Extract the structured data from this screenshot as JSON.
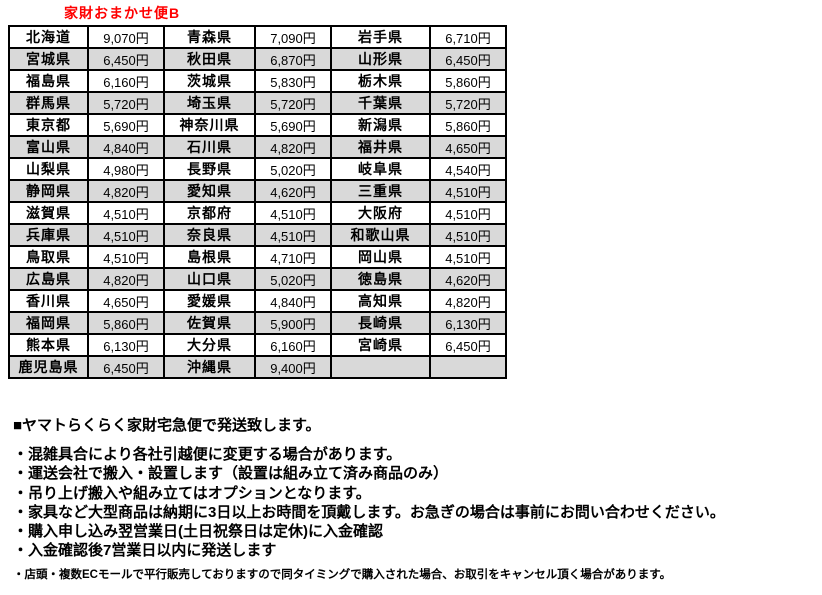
{
  "title": "家財おまかせ便B",
  "colors": {
    "title_red": "#ff0000",
    "row_alt_gray": "#d9d9d9",
    "border": "#000000"
  },
  "table": {
    "rows": [
      [
        [
          "北海道",
          "9,070円"
        ],
        [
          "青森県",
          "7,090円"
        ],
        [
          "岩手県",
          "6,710円"
        ]
      ],
      [
        [
          "宮城県",
          "6,450円"
        ],
        [
          "秋田県",
          "6,870円"
        ],
        [
          "山形県",
          "6,450円"
        ]
      ],
      [
        [
          "福島県",
          "6,160円"
        ],
        [
          "茨城県",
          "5,830円"
        ],
        [
          "栃木県",
          "5,860円"
        ]
      ],
      [
        [
          "群馬県",
          "5,720円"
        ],
        [
          "埼玉県",
          "5,720円"
        ],
        [
          "千葉県",
          "5,720円"
        ]
      ],
      [
        [
          "東京都",
          "5,690円"
        ],
        [
          "神奈川県",
          "5,690円"
        ],
        [
          "新潟県",
          "5,860円"
        ]
      ],
      [
        [
          "富山県",
          "4,840円"
        ],
        [
          "石川県",
          "4,820円"
        ],
        [
          "福井県",
          "4,650円"
        ]
      ],
      [
        [
          "山梨県",
          "4,980円"
        ],
        [
          "長野県",
          "5,020円"
        ],
        [
          "岐阜県",
          "4,540円"
        ]
      ],
      [
        [
          "静岡県",
          "4,820円"
        ],
        [
          "愛知県",
          "4,620円"
        ],
        [
          "三重県",
          "4,510円"
        ]
      ],
      [
        [
          "滋賀県",
          "4,510円"
        ],
        [
          "京都府",
          "4,510円"
        ],
        [
          "大阪府",
          "4,510円"
        ]
      ],
      [
        [
          "兵庫県",
          "4,510円"
        ],
        [
          "奈良県",
          "4,510円"
        ],
        [
          "和歌山県",
          "4,510円"
        ]
      ],
      [
        [
          "鳥取県",
          "4,510円"
        ],
        [
          "島根県",
          "4,710円"
        ],
        [
          "岡山県",
          "4,510円"
        ]
      ],
      [
        [
          "広島県",
          "4,820円"
        ],
        [
          "山口県",
          "5,020円"
        ],
        [
          "徳島県",
          "4,620円"
        ]
      ],
      [
        [
          "香川県",
          "4,650円"
        ],
        [
          "愛媛県",
          "4,840円"
        ],
        [
          "高知県",
          "4,820円"
        ]
      ],
      [
        [
          "福岡県",
          "5,860円"
        ],
        [
          "佐賀県",
          "5,900円"
        ],
        [
          "長崎県",
          "6,130円"
        ]
      ],
      [
        [
          "熊本県",
          "6,130円"
        ],
        [
          "大分県",
          "6,160円"
        ],
        [
          "宮崎県",
          "6,450円"
        ]
      ],
      [
        [
          "鹿児島県",
          "6,450円"
        ],
        [
          "沖縄県",
          "9,400円"
        ],
        [
          "",
          ""
        ]
      ]
    ]
  },
  "notes": {
    "heading": "■ヤマトらくらく家財宅急便で発送致します。",
    "bullets": [
      "・混雑具合により各社引越便に変更する場合があります。",
      "・運送会社で搬入・設置します（設置は組み立て済み商品のみ）",
      "・吊り上げ搬入や組み立てはオプションとなります。",
      "・家具など大型商品は納期に3日以上お時間を頂戴します。お急ぎの場合は事前にお問い合わせください。",
      "・購入申し込み翌営業日(土日祝祭日は定休)に入金確認",
      "・入金確認後7営業日以内に発送します"
    ],
    "small_note": "・店頭・複数ECモールで平行販売しておりますので同タイミングで購入された場合、お取引をキャンセル頂く場合があります。"
  }
}
